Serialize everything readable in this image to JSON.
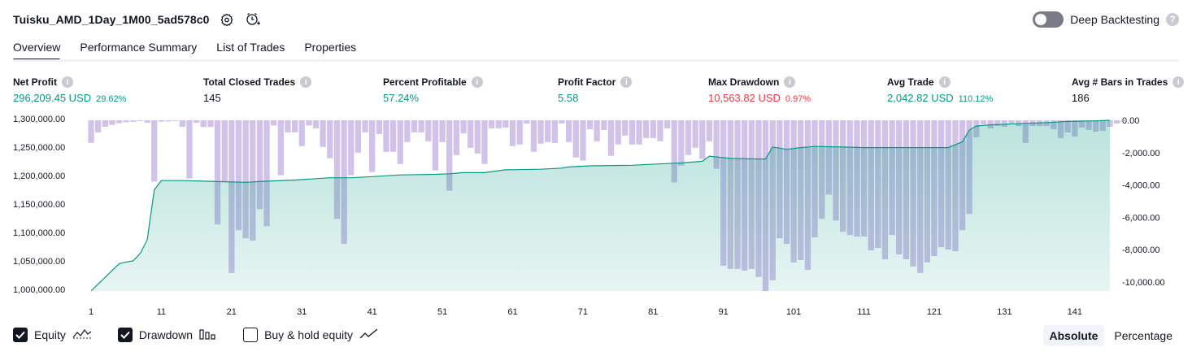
{
  "header": {
    "title": "Tuisku_AMD_1Day_1M00_5ad578c0",
    "settings_icon": "gear-icon",
    "alert_icon": "add-alert-icon"
  },
  "deep_backtesting": {
    "label": "Deep Backtesting",
    "enabled": false,
    "help": "?"
  },
  "tabs": [
    {
      "label": "Overview",
      "active": true
    },
    {
      "label": "Performance Summary",
      "active": false
    },
    {
      "label": "List of Trades",
      "active": false
    },
    {
      "label": "Properties",
      "active": false
    }
  ],
  "metrics": [
    {
      "label": "Net Profit",
      "value": "296,209.45 USD",
      "pct": "29.62%",
      "color": "#089981"
    },
    {
      "label": "Total Closed Trades",
      "value": "145",
      "pct": "",
      "color": "#131722"
    },
    {
      "label": "Percent Profitable",
      "value": "57.24%",
      "pct": "",
      "color": "#089981"
    },
    {
      "label": "Profit Factor",
      "value": "5.58",
      "pct": "",
      "color": "#089981"
    },
    {
      "label": "Max Drawdown",
      "value": "10,563.82 USD",
      "pct": "0.97%",
      "color": "#f23645"
    },
    {
      "label": "Avg Trade",
      "value": "2,042.82 USD",
      "pct": "110.12%",
      "color": "#089981"
    },
    {
      "label": "Avg # Bars in Trades",
      "value": "186",
      "pct": "",
      "color": "#131722"
    }
  ],
  "chart_data": {
    "type": "area",
    "left_axis": {
      "ticks": [
        "1,300,000.00",
        "1,250,000.00",
        "1,200,000.00",
        "1,150,000.00",
        "1,100,000.00",
        "1,050,000.00",
        "1,000,000.00"
      ],
      "ylim": [
        1000000,
        1300000
      ]
    },
    "right_axis": {
      "ticks": [
        "0.00",
        "-2,000.00",
        "-4,000.00",
        "-6,000.00",
        "-8,000.00",
        "-10,000.00"
      ],
      "ylim": [
        -10563.82,
        0
      ]
    },
    "x_ticks": [
      "1",
      "11",
      "21",
      "31",
      "41",
      "51",
      "61",
      "71",
      "81",
      "91",
      "101",
      "111",
      "121",
      "131",
      "141"
    ],
    "x_range": [
      1,
      146
    ],
    "series": [
      {
        "name": "Equity",
        "color": "#089981",
        "anchors": [
          [
            1,
            1000000
          ],
          [
            2,
            1012000
          ],
          [
            3,
            1024000
          ],
          [
            4,
            1036000
          ],
          [
            5,
            1048000
          ],
          [
            6,
            1051000
          ],
          [
            7,
            1053000
          ],
          [
            8,
            1066000
          ],
          [
            9,
            1090000
          ],
          [
            10,
            1178000
          ],
          [
            11,
            1194000
          ],
          [
            14,
            1194000
          ],
          [
            17,
            1193000
          ],
          [
            20,
            1192000
          ],
          [
            23,
            1191000
          ],
          [
            26,
            1193000
          ],
          [
            30,
            1195000
          ],
          [
            35,
            1199000
          ],
          [
            38,
            1199000
          ],
          [
            41,
            1201000
          ],
          [
            45,
            1204000
          ],
          [
            50,
            1205000
          ],
          [
            52,
            1206000
          ],
          [
            54,
            1208000
          ],
          [
            57,
            1208000
          ],
          [
            60,
            1213000
          ],
          [
            65,
            1214000
          ],
          [
            68,
            1216000
          ],
          [
            69,
            1218000
          ],
          [
            72,
            1220000
          ],
          [
            78,
            1221000
          ],
          [
            83,
            1224000
          ],
          [
            85,
            1225000
          ],
          [
            88,
            1228000
          ],
          [
            89,
            1237000
          ],
          [
            92,
            1233000
          ],
          [
            96,
            1232000
          ],
          [
            97,
            1232000
          ],
          [
            98,
            1253000
          ],
          [
            100,
            1249000
          ],
          [
            102,
            1252000
          ],
          [
            104,
            1254000
          ],
          [
            108,
            1253000
          ],
          [
            111,
            1252000
          ],
          [
            115,
            1252000
          ],
          [
            120,
            1252000
          ],
          [
            123,
            1252000
          ],
          [
            125,
            1262000
          ],
          [
            126,
            1283000
          ],
          [
            127,
            1290000
          ],
          [
            129,
            1292000
          ],
          [
            133,
            1294000
          ],
          [
            137,
            1296000
          ],
          [
            140,
            1298000
          ],
          [
            144,
            1299000
          ],
          [
            146,
            1300000
          ]
        ]
      },
      {
        "name": "Drawdown",
        "color": "#b39ddb",
        "values": [
          -1400,
          -750,
          -400,
          -280,
          -180,
          -120,
          -90,
          -50,
          -150,
          -3800,
          -80,
          -70,
          -50,
          -400,
          -3600,
          -150,
          -420,
          -420,
          -6450,
          -3800,
          -9450,
          -6800,
          -7300,
          -7450,
          -5500,
          -6550,
          -320,
          -3400,
          -750,
          -750,
          -1600,
          -320,
          -500,
          -1650,
          -2350,
          -6100,
          -7650,
          -3400,
          -2000,
          -750,
          -3200,
          -850,
          -1950,
          -1950,
          -2700,
          -1350,
          -750,
          -750,
          -1300,
          -3100,
          -1350,
          -4350,
          -2150,
          -800,
          -1700,
          -2050,
          -2700,
          -500,
          -500,
          -450,
          -1600,
          -1500,
          -200,
          -1950,
          -1450,
          -1350,
          -1400,
          -200,
          -1350,
          -2300,
          -2500,
          -550,
          -1300,
          -600,
          -2200,
          -1500,
          -950,
          -1500,
          -1500,
          -1100,
          -1100,
          -1300,
          -500,
          -3850,
          -2800,
          -2150,
          -1700,
          -2400,
          -1300,
          -3000,
          -9000,
          -9200,
          -9200,
          -9300,
          -9200,
          -9700,
          -10563,
          -9900,
          -7300,
          -7650,
          -8800,
          -8650,
          -9250,
          -7250,
          -6100,
          -4600,
          -6200,
          -6900,
          -7100,
          -7200,
          -7200,
          -8050,
          -7900,
          -8600,
          -7100,
          -8300,
          -8600,
          -9050,
          -9450,
          -8800,
          -8400,
          -7850,
          -8000,
          -8100,
          -6800,
          -5800,
          -1050,
          -250,
          -500,
          -350,
          -400,
          -200,
          -350,
          -1400,
          -350,
          -350,
          -350,
          -550,
          -1100,
          -750,
          -1000,
          -450,
          -600,
          -700,
          -650,
          -400,
          -200,
          -100
        ]
      }
    ]
  },
  "legend": [
    {
      "label": "Equity",
      "checked": true,
      "icon": "equity-line-icon"
    },
    {
      "label": "Drawdown",
      "checked": true,
      "icon": "drawdown-bars-icon"
    },
    {
      "label": "Buy & hold equity",
      "checked": false,
      "icon": "buy-hold-line-icon"
    }
  ],
  "view_modes": [
    {
      "label": "Absolute",
      "active": true
    },
    {
      "label": "Percentage",
      "active": false
    }
  ]
}
